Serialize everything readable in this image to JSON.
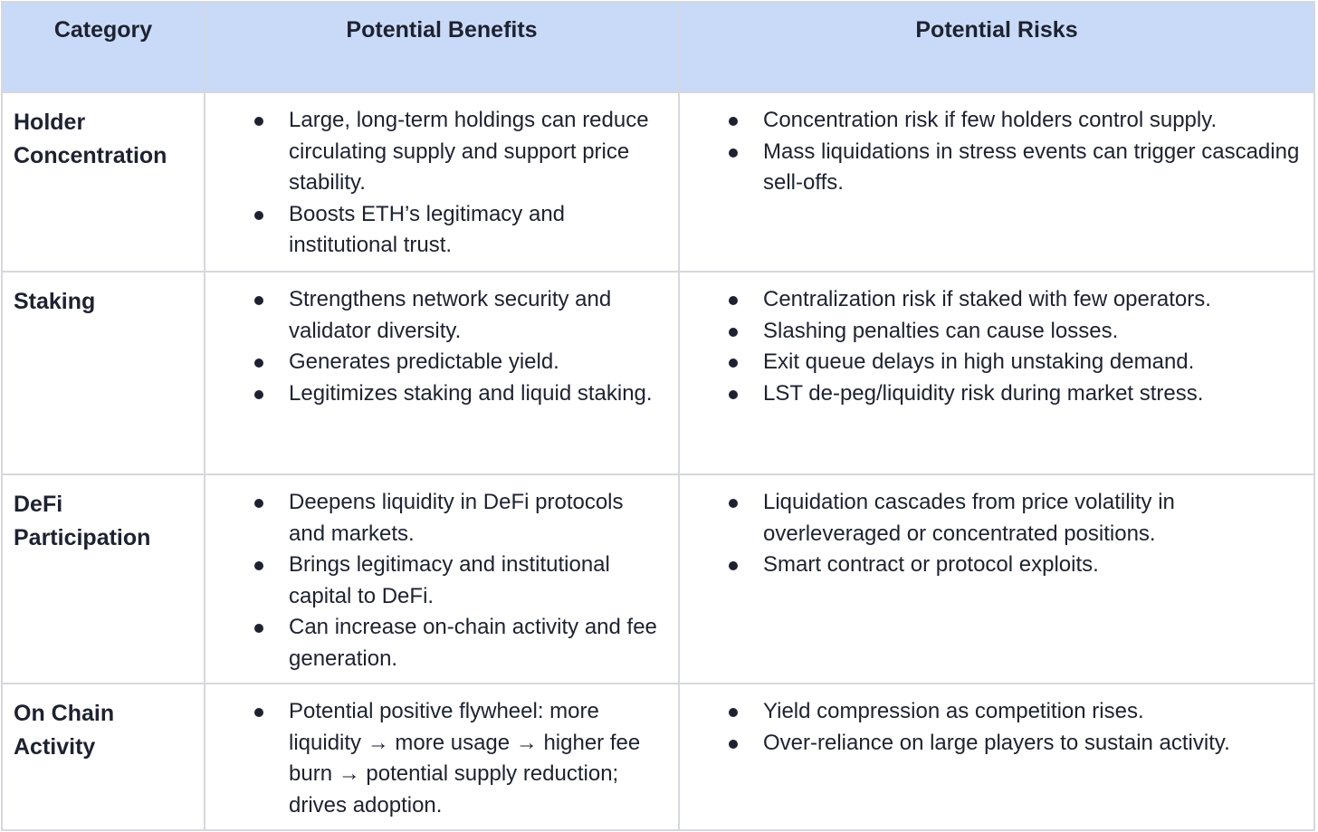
{
  "header": {
    "category": "Category",
    "benefits": "Potential Benefits",
    "risks": "Potential Risks"
  },
  "rows": [
    {
      "category": "Holder Concentration",
      "benefits": [
        " Large, long-term holdings can reduce circulating supply and support price stability.",
        "Boosts ETH’s legitimacy and institutional trust."
      ],
      "risks": [
        " Concentration risk if few holders control supply.",
        "Mass liquidations in stress events can trigger cascading sell-offs."
      ]
    },
    {
      "category": "Staking",
      "benefits": [
        "Strengthens network security and validator diversity.",
        "Generates predictable yield.",
        "Legitimizes staking and liquid staking."
      ],
      "risks": [
        "Centralization risk if staked with few operators.",
        "Slashing penalties can cause losses.",
        "Exit queue delays in high unstaking demand.",
        "LST de-peg/liquidity risk during market stress."
      ]
    },
    {
      "category": "DeFi Participation",
      "benefits": [
        "Deepens liquidity in DeFi protocols and markets.",
        "Brings legitimacy and institutional capital to DeFi.",
        "Can increase on-chain activity and fee generation."
      ],
      "risks": [
        "Liquidation cascades from price volatility in overleveraged or concentrated positions.",
        "Smart contract or protocol exploits."
      ]
    },
    {
      "category": "On Chain Activity",
      "benefits": [
        "Potential positive flywheel: more liquidity → more usage → higher fee burn → potential supply reduction; drives adoption."
      ],
      "risks": [
        "Yield compression as competition rises.",
        "Over-reliance on large players to sustain activity."
      ]
    }
  ]
}
